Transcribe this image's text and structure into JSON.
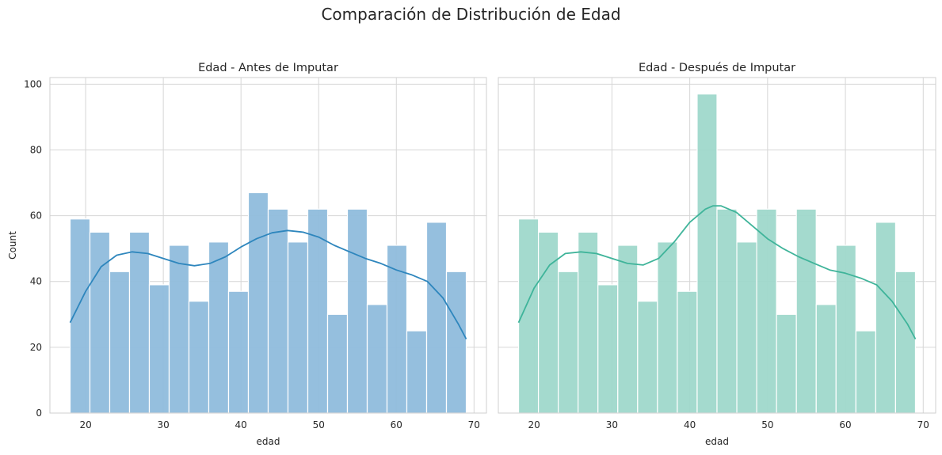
{
  "figure": {
    "title": "Comparación de Distribución de Edad"
  },
  "chart_data": [
    {
      "type": "bar",
      "subtype": "histogram-with-kde",
      "title": "Edad - Antes de Imputar",
      "xlabel": "edad",
      "ylabel": "Count",
      "xlim": [
        15.4,
        71.6
      ],
      "ylim": [
        0,
        102
      ],
      "x_ticks": [
        20,
        30,
        40,
        50,
        60,
        70
      ],
      "y_ticks": [
        0,
        20,
        40,
        60,
        80,
        100
      ],
      "grid": true,
      "bar_color": "#8fbcdc",
      "line_color": "#2e86bd",
      "bins": [
        {
          "x0": 18.0,
          "x1": 20.55,
          "count": 59
        },
        {
          "x0": 20.55,
          "x1": 23.1,
          "count": 55
        },
        {
          "x0": 23.1,
          "x1": 25.65,
          "count": 43
        },
        {
          "x0": 25.65,
          "x1": 28.2,
          "count": 55
        },
        {
          "x0": 28.2,
          "x1": 30.75,
          "count": 39
        },
        {
          "x0": 30.75,
          "x1": 33.3,
          "count": 51
        },
        {
          "x0": 33.3,
          "x1": 35.85,
          "count": 34
        },
        {
          "x0": 35.85,
          "x1": 38.4,
          "count": 52
        },
        {
          "x0": 38.4,
          "x1": 40.95,
          "count": 37
        },
        {
          "x0": 40.95,
          "x1": 43.5,
          "count": 67
        },
        {
          "x0": 43.5,
          "x1": 46.05,
          "count": 62
        },
        {
          "x0": 46.05,
          "x1": 48.6,
          "count": 52
        },
        {
          "x0": 48.6,
          "x1": 51.15,
          "count": 62
        },
        {
          "x0": 51.15,
          "x1": 53.7,
          "count": 30
        },
        {
          "x0": 53.7,
          "x1": 56.25,
          "count": 62
        },
        {
          "x0": 56.25,
          "x1": 58.8,
          "count": 33
        },
        {
          "x0": 58.8,
          "x1": 61.35,
          "count": 51
        },
        {
          "x0": 61.35,
          "x1": 63.9,
          "count": 25
        },
        {
          "x0": 63.9,
          "x1": 66.45,
          "count": 58
        },
        {
          "x0": 66.45,
          "x1": 69.0,
          "count": 43
        }
      ],
      "kde": {
        "x": [
          18,
          20,
          22,
          24,
          26,
          28,
          30,
          32,
          34,
          36,
          38,
          40,
          42,
          44,
          46,
          48,
          50,
          52,
          54,
          56,
          58,
          60,
          62,
          64,
          66,
          68,
          69
        ],
        "y": [
          27.5,
          37,
          44.5,
          48,
          49,
          48.5,
          47,
          45.5,
          44.8,
          45.5,
          47.5,
          50.5,
          53,
          54.8,
          55.5,
          55,
          53.5,
          51,
          49,
          47,
          45.5,
          43.5,
          42,
          40,
          35,
          27,
          22.5
        ]
      }
    },
    {
      "type": "bar",
      "subtype": "histogram-with-kde",
      "title": "Edad - Después de Imputar",
      "xlabel": "edad",
      "ylabel": "",
      "xlim": [
        15.4,
        71.6
      ],
      "ylim": [
        0,
        102
      ],
      "x_ticks": [
        20,
        30,
        40,
        50,
        60,
        70
      ],
      "y_ticks": [
        0,
        20,
        40,
        60,
        80,
        100
      ],
      "grid": true,
      "bar_color": "#9fd8cb",
      "line_color": "#3fb49a",
      "bins": [
        {
          "x0": 18.0,
          "x1": 20.55,
          "count": 59
        },
        {
          "x0": 20.55,
          "x1": 23.1,
          "count": 55
        },
        {
          "x0": 23.1,
          "x1": 25.65,
          "count": 43
        },
        {
          "x0": 25.65,
          "x1": 28.2,
          "count": 55
        },
        {
          "x0": 28.2,
          "x1": 30.75,
          "count": 39
        },
        {
          "x0": 30.75,
          "x1": 33.3,
          "count": 51
        },
        {
          "x0": 33.3,
          "x1": 35.85,
          "count": 34
        },
        {
          "x0": 35.85,
          "x1": 38.4,
          "count": 52
        },
        {
          "x0": 38.4,
          "x1": 40.95,
          "count": 37
        },
        {
          "x0": 40.95,
          "x1": 43.5,
          "count": 97
        },
        {
          "x0": 43.5,
          "x1": 46.05,
          "count": 62
        },
        {
          "x0": 46.05,
          "x1": 48.6,
          "count": 52
        },
        {
          "x0": 48.6,
          "x1": 51.15,
          "count": 62
        },
        {
          "x0": 51.15,
          "x1": 53.7,
          "count": 30
        },
        {
          "x0": 53.7,
          "x1": 56.25,
          "count": 62
        },
        {
          "x0": 56.25,
          "x1": 58.8,
          "count": 33
        },
        {
          "x0": 58.8,
          "x1": 61.35,
          "count": 51
        },
        {
          "x0": 61.35,
          "x1": 63.9,
          "count": 25
        },
        {
          "x0": 63.9,
          "x1": 66.45,
          "count": 58
        },
        {
          "x0": 66.45,
          "x1": 69.0,
          "count": 43
        }
      ],
      "kde": {
        "x": [
          18,
          20,
          22,
          24,
          26,
          28,
          30,
          32,
          34,
          36,
          38,
          40,
          42,
          43,
          44,
          46,
          48,
          50,
          52,
          54,
          56,
          58,
          60,
          62,
          64,
          66,
          68,
          69
        ],
        "y": [
          27.5,
          38,
          45,
          48.5,
          49,
          48.5,
          47,
          45.5,
          45,
          47,
          52,
          58,
          62,
          63,
          63,
          61,
          57,
          53,
          50,
          47.5,
          45.5,
          43.5,
          42.5,
          41,
          39,
          34,
          27,
          22.5
        ]
      }
    }
  ]
}
